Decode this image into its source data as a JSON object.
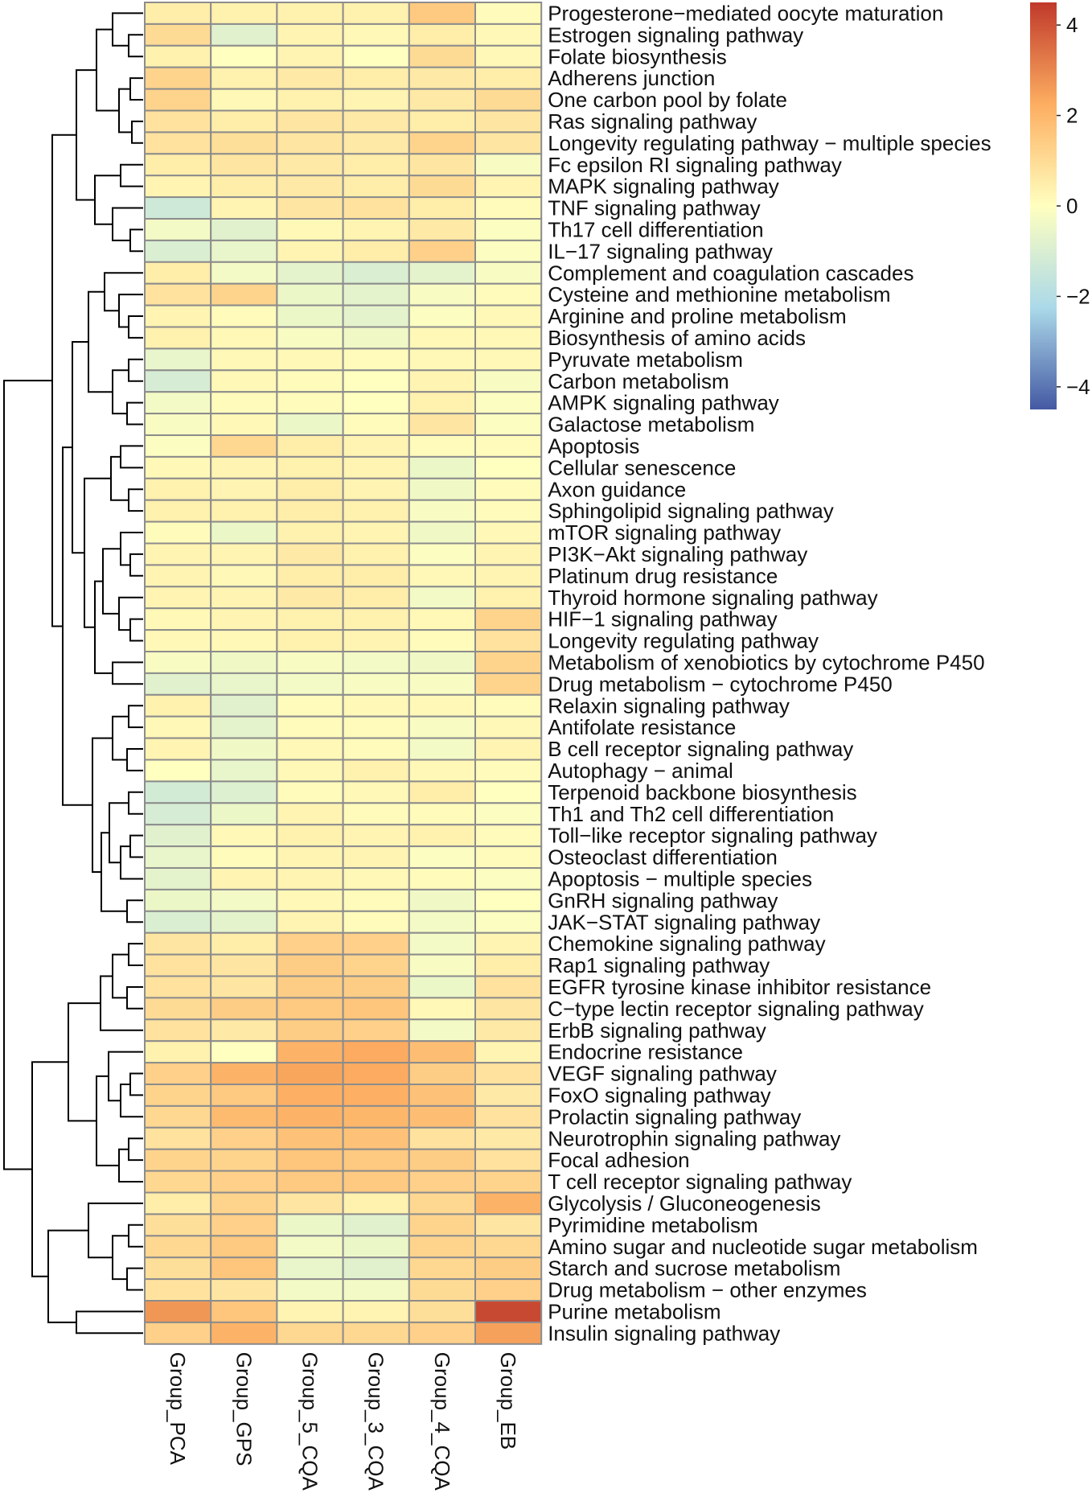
{
  "chart_data": {
    "type": "heatmap",
    "columns": [
      "Group_PCA",
      "Group_GPS",
      "Group_5_CQA",
      "Group_3_CQA",
      "Group_4_CQA",
      "Group_EB"
    ],
    "rows": [
      "Progesterone−mediated oocyte maturation",
      "Estrogen signaling pathway",
      "Folate biosynthesis",
      "Adherens junction",
      "One carbon pool by folate",
      "Ras signaling pathway",
      "Longevity regulating pathway − multiple species",
      "Fc epsilon RI signaling pathway",
      "MAPK signaling pathway",
      "TNF signaling pathway",
      "Th17 cell differentiation",
      "IL−17 signaling pathway",
      "Complement and coagulation cascades",
      "Cysteine and methionine metabolism",
      "Arginine and proline metabolism",
      "Biosynthesis of amino acids",
      "Pyruvate metabolism",
      "Carbon metabolism",
      "AMPK signaling pathway",
      "Galactose metabolism",
      "Apoptosis",
      "Cellular senescence",
      "Axon guidance",
      "Sphingolipid signaling pathway",
      "mTOR signaling pathway",
      "PI3K−Akt signaling pathway",
      "Platinum drug resistance",
      "Thyroid hormone signaling pathway",
      "HIF−1 signaling pathway",
      "Longevity regulating pathway",
      "Metabolism of xenobiotics by cytochrome P450",
      "Drug metabolism − cytochrome P450",
      "Relaxin signaling pathway",
      "Antifolate resistance",
      "B cell receptor signaling pathway",
      "Autophagy − animal",
      "Terpenoid backbone biosynthesis",
      "Th1 and Th2 cell differentiation",
      "Toll−like receptor signaling pathway",
      "Osteoclast differentiation",
      "Apoptosis − multiple species",
      "GnRH signaling pathway",
      "JAK−STAT signaling pathway",
      "Chemokine signaling pathway",
      "Rap1 signaling pathway",
      "EGFR tyrosine kinase inhibitor resistance",
      "C−type lectin receptor signaling pathway",
      "ErbB signaling pathway",
      "Endocrine resistance",
      "VEGF signaling pathway",
      "FoxO signaling pathway",
      "Prolactin signaling pathway",
      "Neurotrophin signaling pathway",
      "Focal adhesion",
      "T cell receptor signaling pathway",
      "Glycolysis / Gluconeogenesis",
      "Pyrimidine metabolism",
      "Amino sugar and nucleotide sugar metabolism",
      "Starch and sucrose metabolism",
      "Drug metabolism − other enzymes",
      "Purine metabolism",
      "Insulin signaling pathway"
    ],
    "values": [
      [
        0.5,
        0.4,
        0.4,
        0.4,
        1.5,
        0.1
      ],
      [
        1.0,
        -0.8,
        0.3,
        0.2,
        0.5,
        0.2
      ],
      [
        0.4,
        0.0,
        0.3,
        0.0,
        1.0,
        0.2
      ],
      [
        1.2,
        0.4,
        0.6,
        0.5,
        0.6,
        0.5
      ],
      [
        1.2,
        0.2,
        0.4,
        0.3,
        0.6,
        1.0
      ],
      [
        0.8,
        0.5,
        0.7,
        0.6,
        0.5,
        0.7
      ],
      [
        0.8,
        0.9,
        0.7,
        0.6,
        1.2,
        0.7
      ],
      [
        0.5,
        0.7,
        0.6,
        0.5,
        0.7,
        -0.2
      ],
      [
        0.3,
        0.5,
        0.6,
        0.5,
        1.0,
        0.3
      ],
      [
        -1.3,
        0.3,
        0.7,
        0.8,
        0.5,
        0.1
      ],
      [
        -0.3,
        -0.8,
        0.2,
        0.3,
        0.6,
        -0.1
      ],
      [
        -1.0,
        -0.6,
        0.3,
        0.5,
        1.3,
        -0.1
      ],
      [
        0.5,
        -0.3,
        -0.7,
        -1.0,
        -0.7,
        -0.2
      ],
      [
        0.8,
        1.2,
        -0.5,
        -0.7,
        -0.2,
        0.1
      ],
      [
        0.3,
        0.1,
        -0.5,
        -0.7,
        -0.1,
        0.2
      ],
      [
        0.4,
        0.2,
        -0.2,
        -0.4,
        0.2,
        0.2
      ],
      [
        -0.6,
        0.2,
        0.2,
        0.1,
        0.2,
        0.2
      ],
      [
        -1.1,
        0.2,
        0.1,
        0.0,
        0.3,
        -0.2
      ],
      [
        -0.3,
        0.1,
        0.1,
        0.0,
        0.4,
        -0.1
      ],
      [
        -0.2,
        0.2,
        -0.5,
        0.1,
        0.7,
        -0.1
      ],
      [
        -0.1,
        1.1,
        0.5,
        0.3,
        0.1,
        0.1
      ],
      [
        0.2,
        0.3,
        0.4,
        0.3,
        -0.5,
        0.0
      ],
      [
        0.4,
        0.3,
        0.5,
        0.3,
        -0.4,
        0.1
      ],
      [
        0.4,
        0.4,
        0.5,
        0.4,
        -0.2,
        0.1
      ],
      [
        0.1,
        -0.5,
        0.4,
        0.3,
        -0.4,
        0.2
      ],
      [
        0.3,
        0.3,
        0.6,
        0.4,
        -0.1,
        0.3
      ],
      [
        0.3,
        0.2,
        0.5,
        0.5,
        0.2,
        0.3
      ],
      [
        0.3,
        0.3,
        0.6,
        0.5,
        -0.3,
        0.4
      ],
      [
        0.2,
        0.3,
        0.4,
        0.4,
        0.2,
        1.2
      ],
      [
        0.2,
        0.2,
        0.4,
        0.3,
        0.1,
        0.8
      ],
      [
        -0.2,
        -0.4,
        -0.2,
        -0.3,
        -0.4,
        1.2
      ],
      [
        -0.8,
        -0.6,
        -0.3,
        -0.2,
        -0.2,
        1.2
      ],
      [
        0.4,
        -0.8,
        0.1,
        0.2,
        0.2,
        0.1
      ],
      [
        0.2,
        -0.7,
        0.1,
        0.1,
        -0.2,
        0.2
      ],
      [
        0.3,
        -0.4,
        0.2,
        0.1,
        -0.3,
        0.3
      ],
      [
        0.0,
        -0.6,
        0.2,
        0.4,
        0.2,
        0.1
      ],
      [
        -1.2,
        -0.9,
        0.1,
        0.2,
        0.5,
        0.0
      ],
      [
        -1.1,
        -0.5,
        0.3,
        0.1,
        0.1,
        -0.1
      ],
      [
        -0.8,
        0.2,
        0.4,
        0.3,
        0.4,
        0.1
      ],
      [
        -0.6,
        0.1,
        0.3,
        0.3,
        -0.1,
        0.1
      ],
      [
        -0.7,
        0.3,
        0.3,
        0.2,
        0.1,
        -0.1
      ],
      [
        -0.5,
        -0.3,
        0.2,
        0.1,
        -0.4,
        0.0
      ],
      [
        -1.0,
        -0.7,
        0.3,
        0.1,
        -0.3,
        -0.1
      ],
      [
        0.7,
        0.5,
        1.3,
        1.3,
        -0.3,
        0.3
      ],
      [
        0.8,
        0.7,
        1.4,
        1.2,
        -0.2,
        0.5
      ],
      [
        0.8,
        0.7,
        1.4,
        1.4,
        -0.5,
        0.8
      ],
      [
        1.0,
        1.4,
        1.5,
        1.6,
        0.2,
        0.7
      ],
      [
        0.8,
        0.6,
        1.4,
        1.3,
        -0.3,
        0.6
      ],
      [
        0.4,
        0.0,
        2.1,
        2.3,
        1.8,
        0.3
      ],
      [
        1.3,
        2.1,
        2.4,
        2.3,
        1.4,
        0.8
      ],
      [
        1.2,
        1.5,
        2.2,
        2.2,
        1.7,
        0.6
      ],
      [
        1.1,
        1.9,
        2.1,
        2.0,
        1.8,
        0.8
      ],
      [
        0.8,
        1.3,
        1.7,
        1.7,
        0.8,
        0.6
      ],
      [
        1.2,
        1.2,
        1.6,
        1.5,
        1.4,
        0.8
      ],
      [
        1.1,
        1.3,
        1.5,
        1.5,
        1.3,
        1.2
      ],
      [
        0.5,
        1.2,
        0.7,
        0.4,
        1.1,
        2.1
      ],
      [
        0.9,
        1.3,
        -0.5,
        -0.8,
        1.2,
        0.7
      ],
      [
        1.1,
        1.5,
        -0.3,
        -0.5,
        1.2,
        1.1
      ],
      [
        0.9,
        1.6,
        -0.6,
        -0.8,
        1.1,
        1.4
      ],
      [
        0.8,
        0.7,
        -0.3,
        -0.3,
        1.0,
        1.3
      ],
      [
        2.7,
        1.6,
        0.3,
        0.3,
        0.9,
        4.2
      ],
      [
        1.3,
        2.1,
        1.1,
        1.1,
        1.3,
        2.5
      ]
    ],
    "colorbar": {
      "range": [
        -4.5,
        4.5
      ],
      "ticks": [
        4,
        2,
        0,
        -2,
        -4
      ],
      "tick_labels": [
        "4",
        "2",
        "0",
        "−2",
        "−4"
      ],
      "colors": [
        "#4459a3",
        "#abd9e9",
        "#ffffbf",
        "#fdae61",
        "#c0392b"
      ]
    },
    "row_dendrogram": true,
    "column_dendrogram": false
  }
}
